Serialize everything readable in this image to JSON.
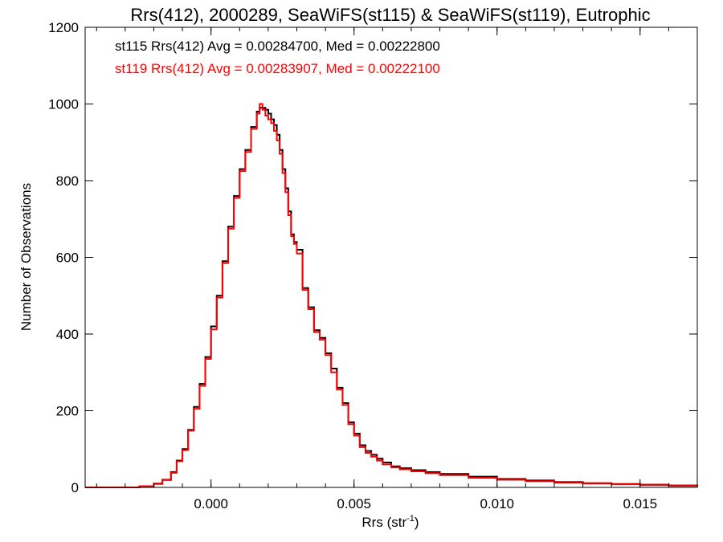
{
  "chart_data": {
    "type": "line",
    "title": "Rrs(412), 2000289, SeaWiFS(st115) & SeaWiFS(st119), Eutrophic",
    "xlabel": "Rrs (str",
    "xlabel_sup": "-1",
    "xlabel_close": ")",
    "ylabel": "Number of Observations",
    "xlim": [
      -0.0044,
      0.017
    ],
    "ylim": [
      0,
      1200
    ],
    "x_ticks": [
      0.0,
      0.005,
      0.01,
      0.015
    ],
    "x_tick_labels": [
      "0.000",
      "0.005",
      "0.010",
      "0.015"
    ],
    "y_ticks": [
      0,
      200,
      400,
      600,
      800,
      1000,
      1200
    ],
    "y_tick_labels": [
      "0",
      "200",
      "400",
      "600",
      "800",
      "1000",
      "1200"
    ],
    "grid": false,
    "annotations": [
      {
        "text": "st115 Rrs(412) Avg = 0.00284700, Med = 0.00222800",
        "color": "#000000"
      },
      {
        "text": "st119 Rrs(412) Avg = 0.00283907, Med = 0.00222100",
        "color": "#ff0000"
      }
    ],
    "series": [
      {
        "color": "#000000",
        "x": [
          -0.0044,
          -0.0035,
          -0.0028,
          -0.0025,
          -0.002,
          -0.0017,
          -0.0014,
          -0.0012,
          -0.001,
          -0.0008,
          -0.0006,
          -0.0004,
          -0.0002,
          0.0,
          0.0002,
          0.0004,
          0.0006,
          0.0008,
          0.001,
          0.0012,
          0.0014,
          0.0016,
          0.0017,
          0.0018,
          0.0019,
          0.002,
          0.0021,
          0.0022,
          0.0023,
          0.0024,
          0.0025,
          0.0026,
          0.0027,
          0.0028,
          0.0029,
          0.003,
          0.0032,
          0.0034,
          0.0036,
          0.0038,
          0.004,
          0.0042,
          0.0044,
          0.0046,
          0.0048,
          0.005,
          0.0052,
          0.0054,
          0.0056,
          0.0058,
          0.006,
          0.0063,
          0.0066,
          0.007,
          0.0075,
          0.008,
          0.009,
          0.01,
          0.011,
          0.012,
          0.013,
          0.014,
          0.015,
          0.016,
          0.017
        ],
        "values": [
          0,
          0,
          0,
          3,
          10,
          20,
          40,
          70,
          100,
          150,
          210,
          270,
          340,
          420,
          500,
          590,
          680,
          760,
          830,
          880,
          940,
          980,
          990,
          990,
          985,
          975,
          960,
          945,
          920,
          880,
          830,
          780,
          720,
          660,
          640,
          620,
          520,
          470,
          410,
          390,
          350,
          310,
          260,
          220,
          170,
          140,
          110,
          95,
          85,
          75,
          65,
          55,
          50,
          45,
          40,
          35,
          28,
          22,
          18,
          14,
          11,
          9,
          7,
          5,
          3
        ]
      },
      {
        "color": "#ff0000",
        "x": [
          -0.0044,
          -0.0035,
          -0.0028,
          -0.0025,
          -0.002,
          -0.0017,
          -0.0014,
          -0.0012,
          -0.001,
          -0.0008,
          -0.0006,
          -0.0004,
          -0.0002,
          0.0,
          0.0002,
          0.0004,
          0.0006,
          0.0008,
          0.001,
          0.0012,
          0.0014,
          0.0016,
          0.0017,
          0.0018,
          0.0019,
          0.002,
          0.0021,
          0.0022,
          0.0023,
          0.0024,
          0.0025,
          0.0026,
          0.0027,
          0.0028,
          0.0029,
          0.003,
          0.0032,
          0.0034,
          0.0036,
          0.0038,
          0.004,
          0.0042,
          0.0044,
          0.0046,
          0.0048,
          0.005,
          0.0052,
          0.0054,
          0.0056,
          0.0058,
          0.006,
          0.0063,
          0.0066,
          0.007,
          0.0075,
          0.008,
          0.009,
          0.01,
          0.011,
          0.012,
          0.013,
          0.014,
          0.015,
          0.016,
          0.017
        ],
        "values": [
          0,
          0,
          0,
          3,
          9,
          19,
          38,
          68,
          97,
          148,
          205,
          265,
          335,
          412,
          495,
          585,
          675,
          755,
          825,
          875,
          935,
          975,
          1000,
          985,
          970,
          960,
          950,
          930,
          905,
          870,
          820,
          770,
          710,
          655,
          635,
          610,
          515,
          465,
          405,
          385,
          345,
          300,
          255,
          215,
          165,
          135,
          105,
          90,
          80,
          70,
          60,
          52,
          47,
          42,
          37,
          32,
          25,
          20,
          16,
          12,
          10,
          8,
          6,
          4,
          2
        ]
      }
    ]
  }
}
